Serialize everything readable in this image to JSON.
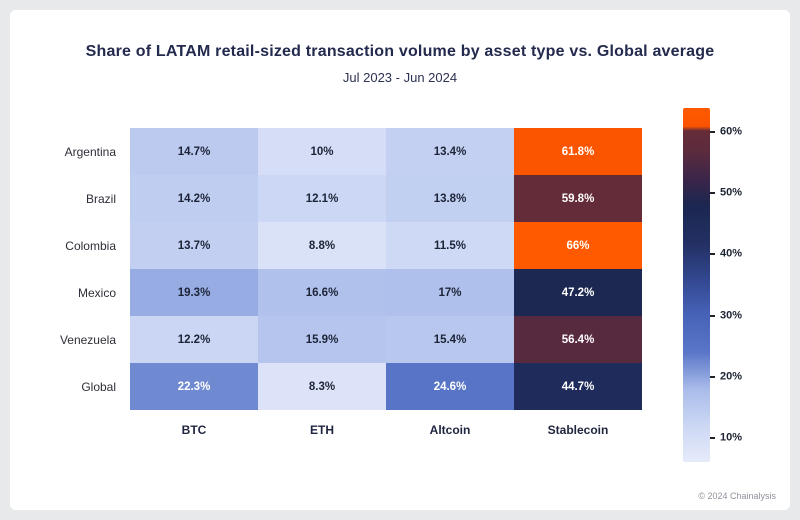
{
  "chart_data": {
    "type": "heatmap",
    "title": "Share of LATAM retail-sized transaction volume by asset type vs. Global average",
    "subtitle": "Jul 2023 - Jun 2024",
    "rows": [
      "Argentina",
      "Brazil",
      "Colombia",
      "Mexico",
      "Venezuela",
      "Global"
    ],
    "columns": [
      "BTC",
      "ETH",
      "Altcoin",
      "Stablecoin"
    ],
    "values": [
      [
        14.7,
        10,
        13.4,
        61.8
      ],
      [
        14.2,
        12.1,
        13.8,
        59.8
      ],
      [
        13.7,
        8.8,
        11.5,
        66
      ],
      [
        19.3,
        16.6,
        17,
        47.2
      ],
      [
        12.2,
        15.9,
        15.4,
        56.4
      ],
      [
        22.3,
        8.3,
        24.6,
        44.7
      ]
    ],
    "cell_labels": [
      [
        "14.7%",
        "10%",
        "13.4%",
        "61.8%"
      ],
      [
        "14.2%",
        "12.1%",
        "13.8%",
        "59.8%"
      ],
      [
        "13.7%",
        "8.8%",
        "11.5%",
        "66%"
      ],
      [
        "19.3%",
        "16.6%",
        "17%",
        "47.2%"
      ],
      [
        "12.2%",
        "15.9%",
        "15.4%",
        "56.4%"
      ],
      [
        "22.3%",
        "8.3%",
        "24.6%",
        "44.7%"
      ]
    ],
    "value_unit": "%",
    "legend_position": "right",
    "scale": {
      "min": 6,
      "max": 64,
      "ticks": [
        10,
        20,
        30,
        40,
        50,
        60
      ],
      "tick_labels": [
        "10%",
        "20%",
        "30%",
        "40%",
        "50%",
        "60%"
      ]
    },
    "palette_stops": [
      {
        "value": 6,
        "color": "#e6ebfa"
      },
      {
        "value": 12,
        "color": "#ccd7f4"
      },
      {
        "value": 18,
        "color": "#a8bbe9"
      },
      {
        "value": 24,
        "color": "#5a76c8"
      },
      {
        "value": 30,
        "color": "#4763b8"
      },
      {
        "value": 36,
        "color": "#32478f"
      },
      {
        "value": 42,
        "color": "#232f62"
      },
      {
        "value": 48,
        "color": "#1b2750"
      },
      {
        "value": 52,
        "color": "#39254a"
      },
      {
        "value": 57,
        "color": "#5c2b3d"
      },
      {
        "value": 60.3,
        "color": "#662c38"
      },
      {
        "value": 61,
        "color": "#fb5300"
      },
      {
        "value": 64,
        "color": "#ff5a00"
      }
    ],
    "text_color_threshold": 20,
    "text_colors": {
      "light_cell": "#1d2438",
      "dark_cell": "#ffffff"
    }
  },
  "footer": {
    "copyright": "© 2024 Chainalysis"
  }
}
